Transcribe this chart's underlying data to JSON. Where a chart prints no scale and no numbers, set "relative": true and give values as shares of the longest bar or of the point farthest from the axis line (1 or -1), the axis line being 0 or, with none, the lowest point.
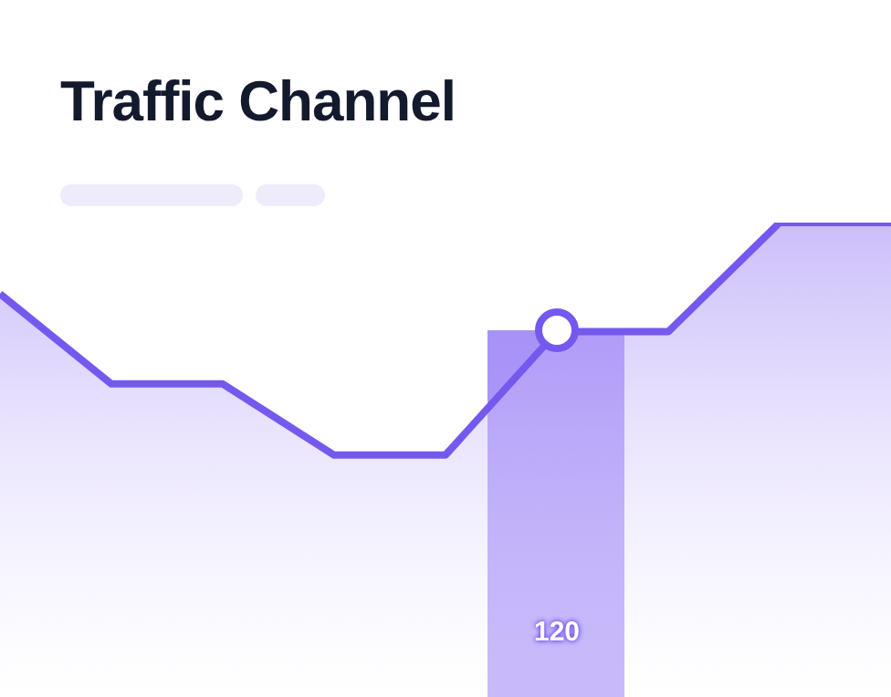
{
  "chart_data": {
    "type": "area",
    "title": "Traffic Channel",
    "relative": true,
    "categories": [
      null,
      null,
      null,
      null,
      null,
      null,
      null,
      null,
      null
    ],
    "series": [
      {
        "color": "#7559ee",
        "values": [
          0.85,
          0.66,
          0.66,
          0.51,
          0.51,
          0.77,
          0.77,
          1,
          1
        ]
      }
    ],
    "grid": false,
    "legend": false,
    "annotations": [
      "120"
    ]
  }
}
